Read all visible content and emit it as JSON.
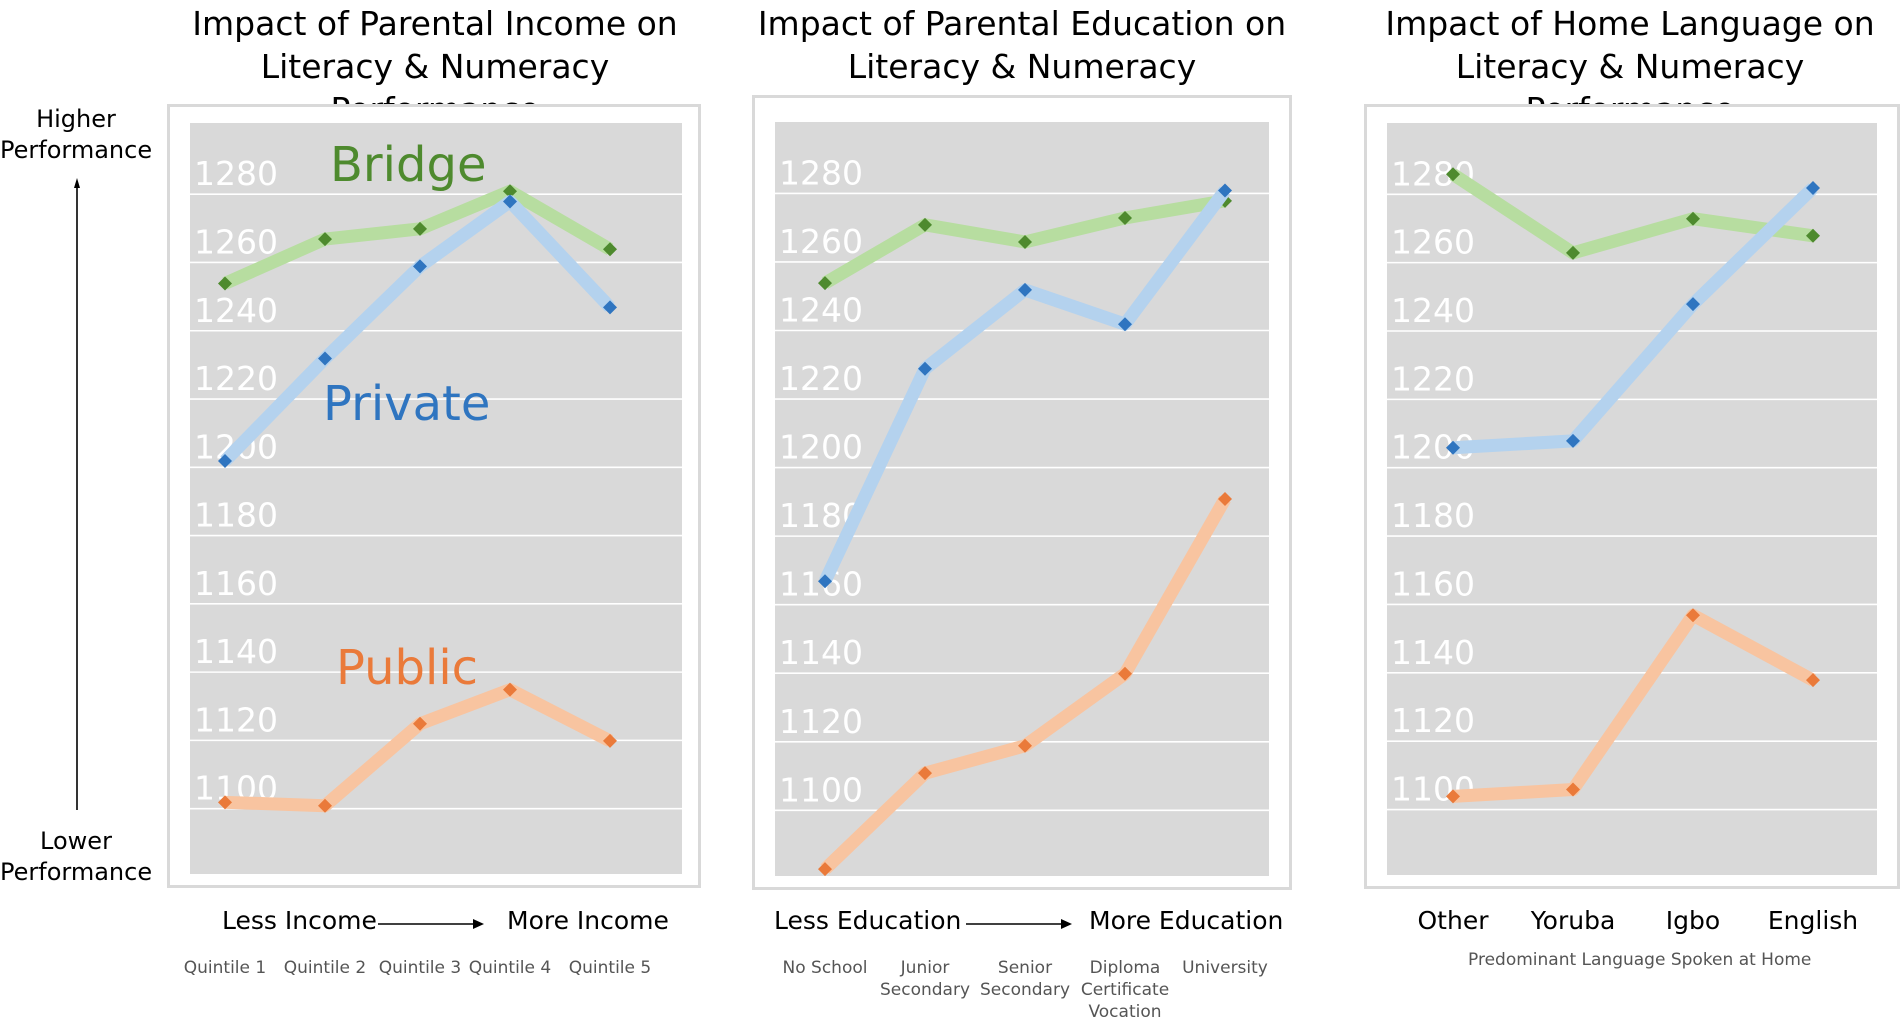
{
  "axis_labels": {
    "higher": "Higher Performance",
    "lower": "Lower Performance"
  },
  "colors": {
    "plot_bg": "#d9d9d9",
    "grid": "#ffffff",
    "tick_text": "#ffffff",
    "bridge_line": "#b7dda0",
    "bridge_marker": "#4e8a2e",
    "private_line": "#b4d2ee",
    "private_marker": "#2f75c0",
    "public_line": "#f8c4a0",
    "public_marker": "#ea7a3a"
  },
  "chart_data": [
    {
      "type": "line",
      "title": "Impact of Parental Income on Literacy & Numeracy Performance",
      "categories": [
        "Quintile 1",
        "Quintile 2",
        "Quintile 3",
        "Quintile 4",
        "Quintile 5"
      ],
      "axis_caption_left": "Less Income",
      "axis_caption_right": "More Income",
      "ylim": [
        1075,
        1295
      ],
      "yticks": [
        1100,
        1120,
        1140,
        1160,
        1180,
        1200,
        1220,
        1240,
        1260,
        1280
      ],
      "grid": true,
      "series": [
        {
          "name": "Bridge",
          "values": [
            1248,
            1261,
            1264,
            1275,
            1258
          ]
        },
        {
          "name": "Private",
          "values": [
            1196,
            1226,
            1253,
            1272,
            1241
          ]
        },
        {
          "name": "Public",
          "values": [
            1096,
            1095,
            1119,
            1129,
            1114
          ]
        }
      ]
    },
    {
      "type": "line",
      "title": "Impact of Parental Education on Literacy & Numeracy Performance",
      "categories": [
        "No School",
        "Junior Secondary",
        "Senior Secondary",
        "Diploma Certificate Vocation",
        "University"
      ],
      "axis_caption_left": "Less Education",
      "axis_caption_right": "More Education",
      "ylim": [
        1075,
        1295
      ],
      "yticks": [
        1100,
        1120,
        1140,
        1160,
        1180,
        1200,
        1220,
        1240,
        1260,
        1280
      ],
      "grid": true,
      "series": [
        {
          "name": "Bridge",
          "values": [
            1248,
            1265,
            1260,
            1267,
            1272
          ]
        },
        {
          "name": "Private",
          "values": [
            1161,
            1223,
            1246,
            1236,
            1275
          ]
        },
        {
          "name": "Public",
          "values": [
            1077,
            1105,
            1113,
            1134,
            1185
          ]
        }
      ]
    },
    {
      "type": "line",
      "title": "Impact of Home Language on Literacy & Numeracy Performance",
      "categories": [
        "Other",
        "Yoruba",
        "Igbo",
        "English"
      ],
      "category_axis_title": "Predominant Language Spoken at Home",
      "ylim": [
        1075,
        1295
      ],
      "yticks": [
        1100,
        1120,
        1140,
        1160,
        1180,
        1200,
        1220,
        1240,
        1260,
        1280
      ],
      "grid": true,
      "series": [
        {
          "name": "Bridge",
          "values": [
            1280,
            1257,
            1267,
            1262
          ]
        },
        {
          "name": "Private",
          "values": [
            1200,
            1202,
            1242,
            1276
          ]
        },
        {
          "name": "Public",
          "values": [
            1098,
            1100,
            1151,
            1132
          ]
        }
      ]
    }
  ],
  "series_callouts": [
    "Bridge",
    "Private",
    "Public"
  ]
}
